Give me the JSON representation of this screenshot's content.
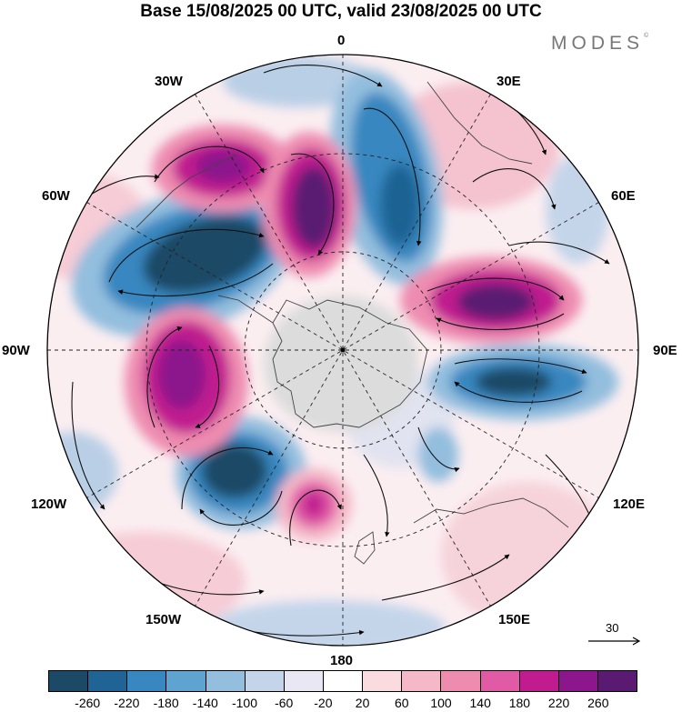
{
  "title": "Base 15/08/2025 00 UTC, valid 23/08/2025 00 UTC",
  "brand": "MODES",
  "brand_mark": "©",
  "longitude_labels": {
    "lon_0": "0",
    "lon_30e": "30E",
    "lon_60e": "60E",
    "lon_90e": "90E",
    "lon_120e": "120E",
    "lon_150e": "150E",
    "lon_180": "180",
    "lon_150w": "150W",
    "lon_120w": "120W",
    "lon_90w": "90W",
    "lon_60w": "60W",
    "lon_30w": "30W"
  },
  "reference_vector": {
    "label": "30"
  },
  "colorbar": {
    "ticks": [
      "-260",
      "-220",
      "-180",
      "-140",
      "-100",
      "-60",
      "-20",
      "20",
      "60",
      "100",
      "140",
      "180",
      "220",
      "260"
    ],
    "colors": [
      "#1c4a66",
      "#1f6494",
      "#3887c0",
      "#5fa3d0",
      "#93bede",
      "#c4d5ea",
      "#e8e7f3",
      "#ffffff",
      "#f9dbe0",
      "#f4b8c8",
      "#ee8cb0",
      "#e05aa5",
      "#c01c8f",
      "#8c168c",
      "#5a1a72"
    ]
  },
  "palette": {
    "neg_dark": "#1c4a66",
    "neg_mid": "#3887c0",
    "neg_light": "#93bede",
    "pos_light": "#f4b8c8",
    "pos_mid": "#e05aa5",
    "pos_dark": "#8c168c",
    "land": "#d0d0d0"
  }
}
